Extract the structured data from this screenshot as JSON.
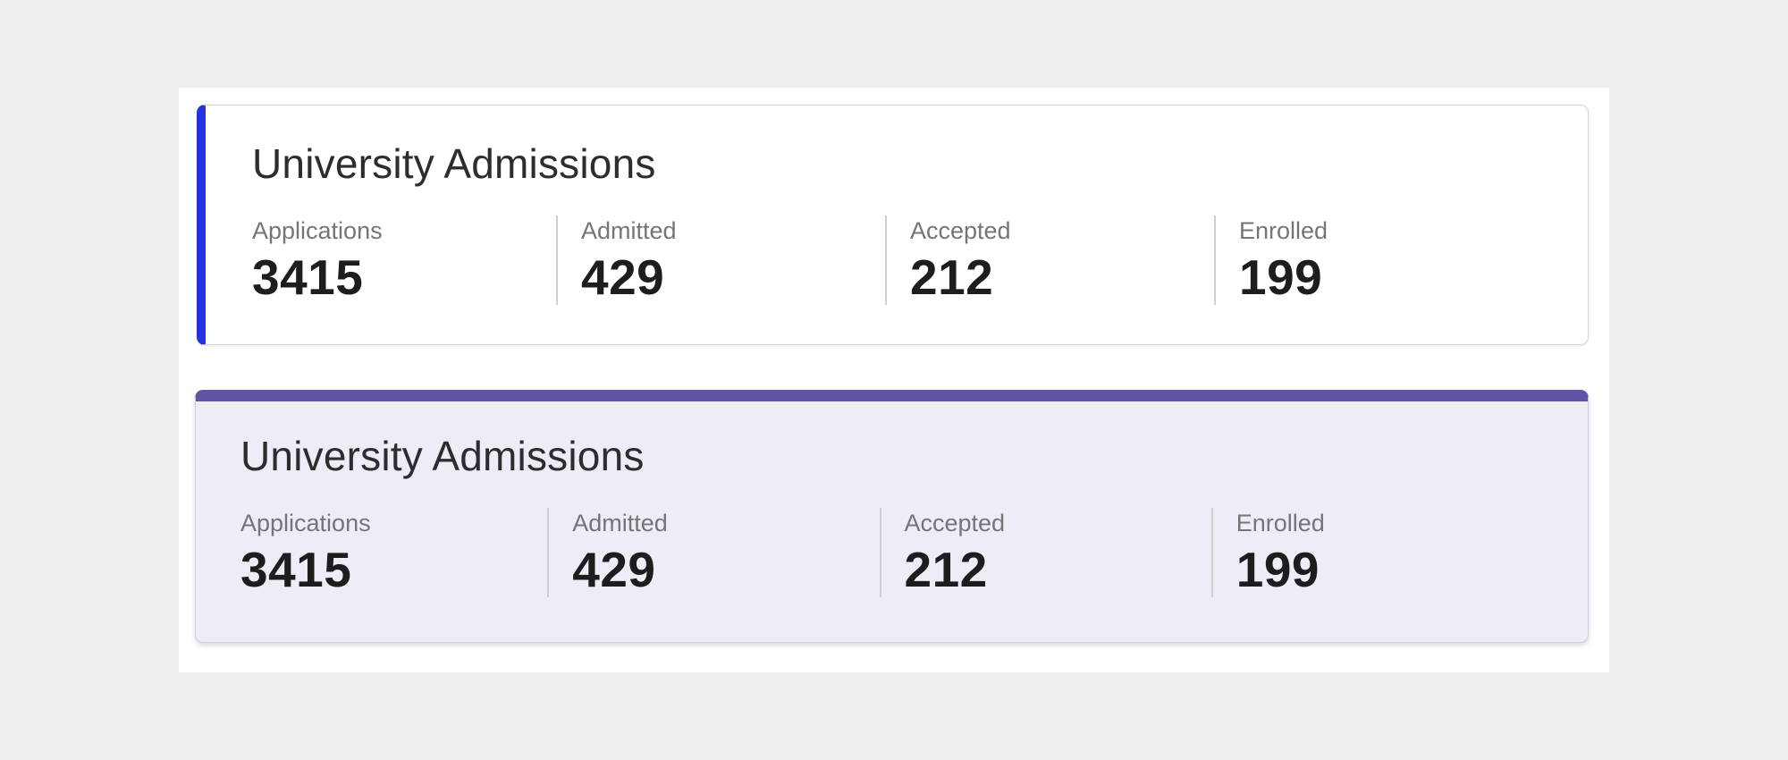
{
  "page": {
    "background_color": "#efefef",
    "panel_background_color": "#ffffff",
    "divider_color": "#cfcfcf"
  },
  "cards": [
    {
      "title": "University Admissions",
      "accent": "left",
      "accent_color": "#2633e0",
      "background_color": "#ffffff",
      "stats": [
        {
          "label": "Applications",
          "value": "3415"
        },
        {
          "label": "Admitted",
          "value": "429"
        },
        {
          "label": "Accepted",
          "value": "212"
        },
        {
          "label": "Enrolled",
          "value": "199"
        }
      ]
    },
    {
      "title": "University Admissions",
      "accent": "top",
      "accent_color": "#5f54a5",
      "background_color": "#eeecf7",
      "stats": [
        {
          "label": "Applications",
          "value": "3415"
        },
        {
          "label": "Admitted",
          "value": "429"
        },
        {
          "label": "Accepted",
          "value": "212"
        },
        {
          "label": "Enrolled",
          "value": "199"
        }
      ]
    }
  ]
}
